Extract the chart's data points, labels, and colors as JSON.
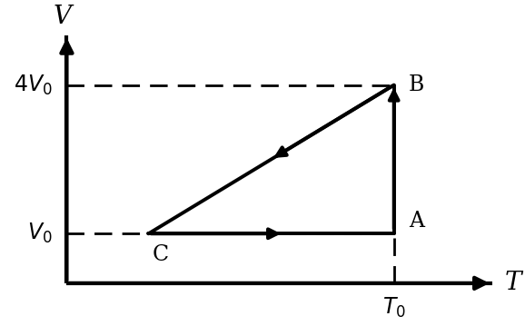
{
  "title": "",
  "xlabel": "T",
  "ylabel": "V",
  "bg_color": "#ffffff",
  "A": [
    4.0,
    1.0
  ],
  "B": [
    4.0,
    4.0
  ],
  "C": [
    1.0,
    1.0
  ],
  "line_color": "#000000",
  "dashed_color": "#000000",
  "fontsize_axis_label": 20,
  "fontsize_tick_label": 17,
  "fontsize_point_label": 17,
  "linewidth": 2.8,
  "axis_linewidth": 3.0,
  "dashed_lw": 2.0,
  "xlim": [
    -0.8,
    5.5
  ],
  "ylim": [
    -0.8,
    5.5
  ],
  "ax_x0": 0.0,
  "ax_y0": 0.0,
  "ax_xmax": 5.2,
  "ax_ymax": 5.0
}
